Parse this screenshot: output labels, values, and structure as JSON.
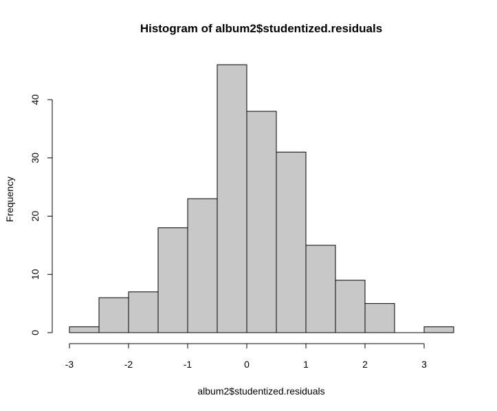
{
  "chart_data": {
    "type": "bar",
    "title": "Histogram of album2$studentized.residuals",
    "xlabel": "album2$studentized.residuals",
    "ylabel": "Frequency",
    "bins": [
      {
        "from": -3.0,
        "to": -2.5,
        "count": 1
      },
      {
        "from": -2.5,
        "to": -2.0,
        "count": 6
      },
      {
        "from": -2.0,
        "to": -1.5,
        "count": 7
      },
      {
        "from": -1.5,
        "to": -1.0,
        "count": 18
      },
      {
        "from": -1.0,
        "to": -0.5,
        "count": 23
      },
      {
        "from": -0.5,
        "to": 0.0,
        "count": 46
      },
      {
        "from": 0.0,
        "to": 0.5,
        "count": 38
      },
      {
        "from": 0.5,
        "to": 1.0,
        "count": 31
      },
      {
        "from": 1.0,
        "to": 1.5,
        "count": 15
      },
      {
        "from": 1.5,
        "to": 2.0,
        "count": 9
      },
      {
        "from": 2.0,
        "to": 2.5,
        "count": 5
      },
      {
        "from": 2.5,
        "to": 3.0,
        "count": 0
      },
      {
        "from": 3.0,
        "to": 3.5,
        "count": 1
      }
    ],
    "xticks": [
      -3,
      -2,
      -1,
      0,
      1,
      2,
      3
    ],
    "yticks": [
      0,
      10,
      20,
      30,
      40
    ],
    "xlim": [
      -3,
      3.5
    ],
    "ylim": [
      0,
      46
    ],
    "grid": false,
    "colors": {
      "bar_fill": "#c8c8c8",
      "bar_stroke": "#000000"
    }
  }
}
